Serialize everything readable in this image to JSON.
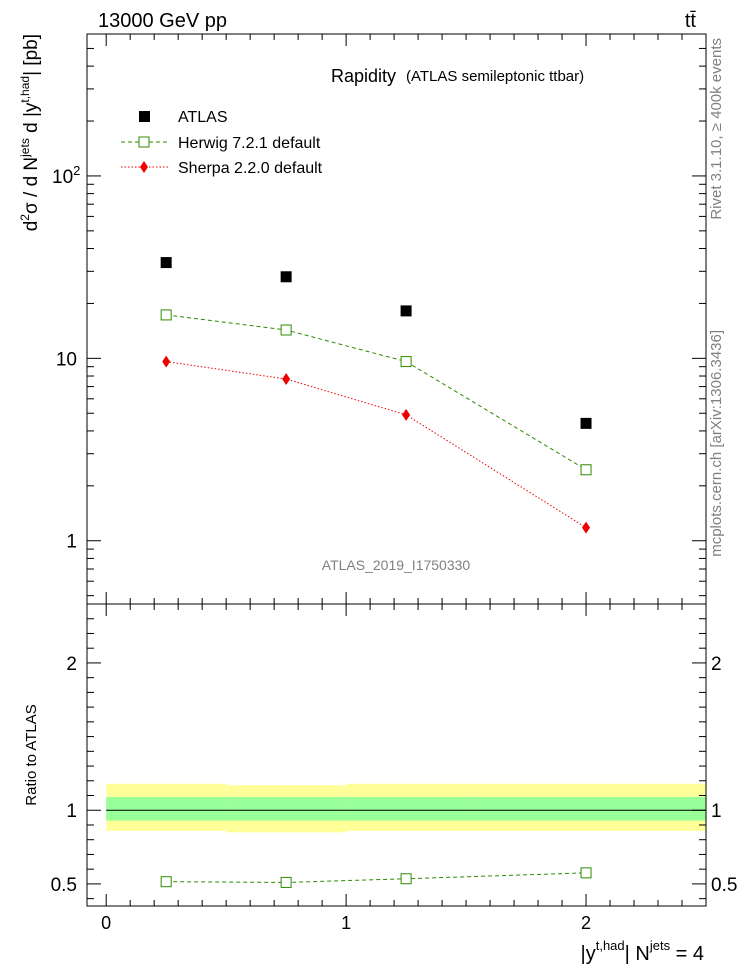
{
  "header": {
    "left": "13000 GeV pp",
    "right": "tt̄"
  },
  "side": {
    "upper": "Rivet 3.1.10, ≥ 400k events",
    "lower": "mcplots.cern.ch [arXiv:1306.3436]"
  },
  "chart_data": {
    "type": "scatter",
    "title": "Rapidity",
    "subtitle": "(ATLAS semileptonic ttbar)",
    "watermark": "ATLAS_2019_I1750330",
    "ylabel": "d²σ / d Nʲᵉᵗˢ d |yᵗʰᵃᵈ| [pb]",
    "xlabel": "|yᵗʰᵃᵈ| Nʲᵉᵗˢ = 4",
    "ratio_ylabel": "Ratio to ATLAS",
    "xlim": [
      -0.08,
      2.5
    ],
    "ylim": [
      0.45,
      600
    ],
    "yscale": "log",
    "ratio_ylim": [
      0.35,
      2.4
    ],
    "x_ticks": [
      "0",
      "1",
      "2"
    ],
    "y_ticks": [
      "1",
      "10",
      "10²"
    ],
    "ratio_y_ticks": [
      "0.5",
      "1",
      "2"
    ],
    "legend_position": "top-left",
    "bins": [
      [
        0,
        0.5
      ],
      [
        0.5,
        1.0
      ],
      [
        1.0,
        1.5
      ],
      [
        1.5,
        2.5
      ]
    ],
    "x": [
      0.25,
      0.75,
      1.25,
      2.0
    ],
    "series": [
      {
        "name": "ATLAS",
        "marker": "filled-square",
        "color": "#000000",
        "values": [
          33.5,
          28.0,
          18.2,
          4.4
        ]
      },
      {
        "name": "Herwig 7.2.1 default",
        "marker": "open-square",
        "line": "dashed",
        "color": "#2e8b00",
        "values": [
          17.3,
          14.3,
          9.6,
          2.45
        ]
      },
      {
        "name": "Sherpa 2.2.0 default",
        "marker": "filled-diamond",
        "line": "dotted",
        "color": "#ee0000",
        "values": [
          9.6,
          7.7,
          4.9,
          1.18
        ]
      }
    ],
    "ratio": {
      "series": [
        {
          "name": "Herwig 7.2.1 default",
          "values": [
            0.515,
            0.51,
            0.535,
            0.575
          ]
        }
      ],
      "band_inner": [
        [
          0.93,
          1.09
        ],
        [
          0.93,
          1.09
        ],
        [
          0.93,
          1.09
        ],
        [
          0.93,
          1.09
        ]
      ],
      "band_outer": [
        [
          0.86,
          1.18
        ],
        [
          0.85,
          1.17
        ],
        [
          0.86,
          1.18
        ],
        [
          0.86,
          1.18
        ]
      ]
    },
    "colors": {
      "band_inner": "#99ff99",
      "band_outer": "#ffff99"
    }
  }
}
